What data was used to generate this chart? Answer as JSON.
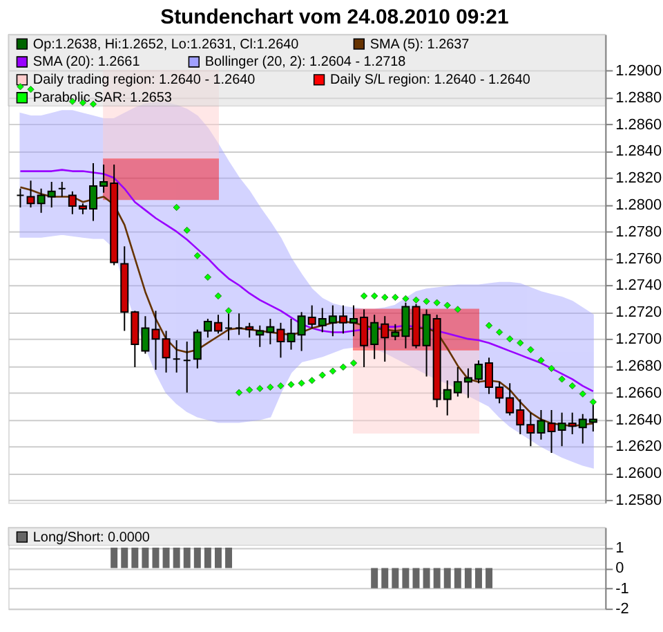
{
  "chart_data": [
    {
      "type": "candlestick",
      "title": "Stundenchart vom 24.08.2010 09:21",
      "categories": [
        null,
        null,
        null,
        null,
        null,
        null,
        null,
        null,
        null,
        null,
        null,
        null,
        null,
        null,
        null,
        null,
        null,
        null,
        null,
        null,
        null,
        null,
        null,
        null,
        null,
        null,
        null,
        null,
        null,
        null,
        null,
        null,
        null,
        null,
        null,
        null,
        null,
        null,
        null,
        null,
        null,
        null,
        null,
        null,
        null,
        null,
        null,
        null,
        null,
        null,
        null,
        null,
        null,
        null,
        null,
        null
      ],
      "ylim": [
        1.2578,
        1.2927
      ],
      "yticks": [
        {
          "value": 1.258,
          "label": "1.2580"
        },
        {
          "value": 1.26,
          "label": "1.2600"
        },
        {
          "value": 1.262,
          "label": "1.2620"
        },
        {
          "value": 1.264,
          "label": "1.2640"
        },
        {
          "value": 1.266,
          "label": "1.2660"
        },
        {
          "value": 1.268,
          "label": "1.2680"
        },
        {
          "value": 1.27,
          "label": "1.2700"
        },
        {
          "value": 1.272,
          "label": "1.2720"
        },
        {
          "value": 1.274,
          "label": "1.2740"
        },
        {
          "value": 1.276,
          "label": "1.2760"
        },
        {
          "value": 1.278,
          "label": "1.2780"
        },
        {
          "value": 1.28,
          "label": "1.2800"
        },
        {
          "value": 1.282,
          "label": "1.2820"
        },
        {
          "value": 1.284,
          "label": "1.2840"
        },
        {
          "value": 1.286,
          "label": "1.2860"
        },
        {
          "value": 1.288,
          "label": "1.2880"
        },
        {
          "value": 1.29,
          "label": "1.2900"
        }
      ],
      "grid": "y",
      "legend": "top",
      "tick_labels": "y",
      "series": [
        {
          "type": "line",
          "name": "Bollinger (20, 2): 1.2604 - 1.2718",
          "color": "#a0a0ff",
          "values": [
            null,
            null,
            null,
            null,
            null,
            null,
            null,
            null,
            null,
            null,
            null,
            null,
            null,
            null,
            null,
            null,
            null,
            null,
            null,
            null,
            null,
            null,
            null,
            null,
            null,
            null,
            null,
            null,
            null,
            null,
            null,
            null,
            null,
            null,
            null,
            null,
            null,
            null,
            null,
            null,
            null,
            null,
            null,
            null,
            null,
            null,
            null,
            null,
            null,
            null,
            null,
            null,
            null,
            null,
            null,
            null
          ],
          "upper": [
            1.2868,
            1.2866,
            1.2866,
            1.2868,
            1.287,
            1.287,
            1.2868,
            1.2866,
            1.2864,
            1.2864,
            1.2868,
            1.2872,
            1.2875,
            1.2876,
            1.2876,
            1.2874,
            1.2871,
            1.2866,
            1.2857,
            1.2845,
            1.2832,
            1.282,
            1.281,
            1.2798,
            1.2787,
            1.2775,
            1.276,
            1.2748,
            1.2737,
            1.273,
            1.2726,
            1.2724,
            1.2723,
            1.2722,
            1.2722,
            1.2723,
            1.2725,
            1.273,
            1.2735,
            1.2737,
            1.2738,
            1.2739,
            1.274,
            1.274,
            1.274,
            1.2741,
            1.2742,
            1.2742,
            1.2741,
            1.2738,
            1.2735,
            1.2733,
            1.2731,
            1.2728,
            1.2723,
            1.2718
          ],
          "lower": [
            1.2776,
            1.2776,
            1.2776,
            1.2777,
            1.2778,
            1.2777,
            1.2776,
            1.2775,
            1.2775,
            1.2768,
            1.274,
            1.2715,
            1.2695,
            1.2675,
            1.266,
            1.2652,
            1.2646,
            1.2642,
            1.264,
            1.2638,
            1.2638,
            1.2638,
            1.2639,
            1.264,
            1.2642,
            1.266,
            1.2675,
            1.2683,
            1.2685,
            1.2687,
            1.269,
            1.2693,
            1.2694,
            1.2694,
            1.2693,
            1.269,
            1.2686,
            1.2682,
            1.2678,
            1.2674,
            1.267,
            1.2667,
            1.2663,
            1.2658,
            1.2654,
            1.265,
            1.2642,
            1.2635,
            1.263,
            1.2625,
            1.262,
            1.2616,
            1.2612,
            1.2609,
            1.2606,
            1.2604
          ]
        },
        {
          "type": "area",
          "name": "Daily trading region: 1.2640 - 1.2640",
          "color": "#ffcccc",
          "values": [
            null,
            null,
            null,
            null,
            null,
            null,
            null,
            null,
            null,
            null,
            null,
            null,
            null,
            null,
            null,
            null,
            null,
            null,
            null,
            null,
            null,
            null,
            null,
            null,
            null,
            null,
            null,
            null,
            null,
            null,
            null,
            null,
            null,
            null,
            null,
            null,
            null,
            null,
            null,
            null,
            null,
            null,
            null,
            null,
            null,
            null,
            null,
            null,
            null,
            null,
            null,
            null,
            null,
            null,
            null,
            null
          ],
          "upper": [
            null,
            null,
            null,
            null,
            null,
            null,
            null,
            null,
            1.29,
            1.29,
            1.29,
            1.29,
            1.29,
            1.29,
            1.29,
            1.29,
            1.29,
            1.29,
            1.29,
            1.29,
            null,
            null,
            null,
            null,
            null,
            null,
            null,
            null,
            null,
            null,
            null,
            null,
            1.2692,
            1.2692,
            1.2692,
            1.2692,
            1.2692,
            1.2692,
            1.2692,
            1.2692,
            1.2692,
            1.2692,
            1.2692,
            1.2692,
            1.2692,
            null,
            null,
            null,
            null,
            null,
            null,
            null,
            null,
            null,
            null,
            null
          ],
          "lower": [
            null,
            null,
            null,
            null,
            null,
            null,
            null,
            null,
            1.2834,
            1.2834,
            1.2834,
            1.2834,
            1.2834,
            1.2834,
            1.2834,
            1.2834,
            1.2834,
            1.2834,
            1.2834,
            1.2834,
            null,
            null,
            null,
            null,
            null,
            null,
            null,
            null,
            null,
            null,
            null,
            null,
            1.263,
            1.263,
            1.263,
            1.263,
            1.263,
            1.263,
            1.263,
            1.263,
            1.263,
            1.263,
            1.263,
            1.263,
            1.263,
            null,
            null,
            null,
            null,
            null,
            null,
            null,
            null,
            null,
            null,
            null
          ]
        },
        {
          "type": "area",
          "name": "Daily S/L region: 1.2640 - 1.2640",
          "color": "#ff0000",
          "values": [
            null,
            null,
            null,
            null,
            null,
            null,
            null,
            null,
            null,
            null,
            null,
            null,
            null,
            null,
            null,
            null,
            null,
            null,
            null,
            null,
            null,
            null,
            null,
            null,
            null,
            null,
            null,
            null,
            null,
            null,
            null,
            null,
            null,
            null,
            null,
            null,
            null,
            null,
            null,
            null,
            null,
            null,
            null,
            null,
            null,
            null,
            null,
            null,
            null,
            null,
            null,
            null,
            null,
            null,
            null,
            null
          ],
          "upper": [
            null,
            null,
            null,
            null,
            null,
            null,
            null,
            null,
            1.2834,
            1.2834,
            1.2834,
            1.2834,
            1.2834,
            1.2834,
            1.2834,
            1.2834,
            1.2834,
            1.2834,
            1.2834,
            1.2834,
            null,
            null,
            null,
            null,
            null,
            null,
            null,
            null,
            null,
            null,
            null,
            null,
            1.2722,
            1.2722,
            1.2722,
            1.2722,
            1.2722,
            1.2722,
            1.2722,
            1.2722,
            1.2722,
            1.2722,
            1.2722,
            1.2722,
            1.2722,
            null,
            null,
            null,
            null,
            null,
            null,
            null,
            null,
            null,
            null,
            null
          ],
          "lower": [
            null,
            null,
            null,
            null,
            null,
            null,
            null,
            null,
            1.2804,
            1.2804,
            1.2804,
            1.2804,
            1.2804,
            1.2804,
            1.2804,
            1.2804,
            1.2804,
            1.2804,
            1.2804,
            1.2804,
            null,
            null,
            null,
            null,
            null,
            null,
            null,
            null,
            null,
            null,
            null,
            null,
            1.2692,
            1.2692,
            1.2692,
            1.2692,
            1.2692,
            1.2692,
            1.2692,
            1.2692,
            1.2692,
            1.2692,
            1.2692,
            1.2692,
            1.2692,
            null,
            null,
            null,
            null,
            null,
            null,
            null,
            null,
            null,
            null,
            null
          ]
        },
        {
          "type": "line",
          "name": "SMA (20): 1.2661",
          "color": "#9900ff",
          "values": [
            1.2825,
            1.2825,
            1.2825,
            1.2825,
            1.2826,
            1.2825,
            1.2825,
            1.2824,
            1.2823,
            1.282,
            1.2812,
            1.2802,
            1.2796,
            1.279,
            1.2785,
            1.278,
            1.2774,
            1.2767,
            1.276,
            1.2752,
            1.2745,
            1.274,
            1.2734,
            1.2729,
            1.2725,
            1.2721,
            1.2716,
            1.2711,
            1.2708,
            1.2706,
            1.2705,
            1.2705,
            1.2706,
            1.2707,
            1.2708,
            1.2709,
            1.2709,
            1.271,
            1.2709,
            1.2708,
            1.2706,
            1.2704,
            1.2702,
            1.27,
            1.2699,
            1.2697,
            1.2694,
            1.2691,
            1.2688,
            1.2685,
            1.2682,
            1.2678,
            1.2674,
            1.267,
            1.2665,
            1.2661
          ]
        },
        {
          "type": "line",
          "name": "SMA (5): 1.2637",
          "color": "#663300",
          "values": [
            1.2813,
            1.2811,
            1.2808,
            1.2806,
            1.2806,
            1.2806,
            1.2802,
            1.2804,
            1.2806,
            1.28,
            1.2785,
            1.276,
            1.2735,
            1.2715,
            1.27,
            1.2692,
            1.269,
            1.2692,
            1.2697,
            1.2702,
            1.2707,
            1.2708,
            1.2707,
            1.2706,
            1.2705,
            1.2704,
            1.2703,
            1.2705,
            1.2708,
            1.271,
            1.2712,
            1.2713,
            1.2712,
            1.271,
            1.2708,
            1.2707,
            1.2706,
            1.2707,
            1.2708,
            1.2708,
            1.2705,
            1.2693,
            1.268,
            1.267,
            1.2668,
            1.2669,
            1.2668,
            1.2662,
            1.2653,
            1.2645,
            1.264,
            1.2637,
            1.2636,
            1.2635,
            1.2636,
            1.2637
          ]
        },
        {
          "type": "candlestick",
          "name": "Op:1.2638, Hi:1.2652, Lo:1.2631, Cl:1.2640",
          "color": "#006400",
          "ohlc": [
            [
              1.2807,
              1.2812,
              1.2798,
              1.2807
            ],
            [
              1.2806,
              1.2818,
              1.2798,
              1.2801
            ],
            [
              1.2801,
              1.2812,
              1.2794,
              1.2807
            ],
            [
              1.2806,
              1.2817,
              1.2798,
              1.281
            ],
            [
              1.2812,
              1.2817,
              1.2806,
              1.2812
            ],
            [
              1.2807,
              1.281,
              1.2793,
              1.2799
            ],
            [
              1.2799,
              1.2801,
              1.2793,
              1.2797
            ],
            [
              1.2797,
              1.2831,
              1.2788,
              1.2814
            ],
            [
              1.2814,
              1.283,
              1.2809,
              1.2817
            ],
            [
              1.2816,
              1.283,
              1.2755,
              1.2757
            ],
            [
              1.2756,
              1.2769,
              1.2706,
              1.272
            ],
            [
              1.272,
              1.2721,
              1.2679,
              1.2696
            ],
            [
              1.2691,
              1.2717,
              1.2689,
              1.2708
            ],
            [
              1.2707,
              1.2721,
              1.2677,
              1.27
            ],
            [
              1.27,
              1.2706,
              1.2675,
              1.2686
            ],
            [
              1.2685,
              1.2699,
              1.2675,
              1.2685
            ],
            [
              1.2684,
              1.2698,
              1.266,
              1.2684
            ],
            [
              1.2685,
              1.2707,
              1.2678,
              1.2705
            ],
            [
              1.2706,
              1.2715,
              1.2701,
              1.2713
            ],
            [
              1.2712,
              1.2718,
              1.2704,
              1.2706
            ],
            [
              1.2708,
              1.2721,
              1.2699,
              1.2708
            ],
            [
              1.2708,
              1.2719,
              1.2703,
              1.2708
            ],
            [
              1.2709,
              1.2712,
              1.2701,
              1.2707
            ],
            [
              1.2703,
              1.271,
              1.2694,
              1.2706
            ],
            [
              1.2705,
              1.2715,
              1.2696,
              1.2709
            ],
            [
              1.2707,
              1.2712,
              1.2686,
              1.2698
            ],
            [
              1.2698,
              1.2715,
              1.2692,
              1.2704
            ],
            [
              1.2703,
              1.272,
              1.2691,
              1.2717
            ],
            [
              1.2716,
              1.2725,
              1.2708,
              1.2711
            ],
            [
              1.271,
              1.2723,
              1.2705,
              1.2715
            ],
            [
              1.2712,
              1.2725,
              1.2702,
              1.2717
            ],
            [
              1.2717,
              1.2725,
              1.2704,
              1.2712
            ],
            [
              1.2712,
              1.2725,
              1.2702,
              1.2715
            ],
            [
              1.2716,
              1.2722,
              1.2679,
              1.2695
            ],
            [
              1.2696,
              1.2718,
              1.2685,
              1.2712
            ],
            [
              1.2711,
              1.2717,
              1.2683,
              1.2701
            ],
            [
              1.2702,
              1.2711,
              1.2699,
              1.2705
            ],
            [
              1.2702,
              1.2727,
              1.2693,
              1.2724
            ],
            [
              1.2724,
              1.2726,
              1.2693,
              1.2695
            ],
            [
              1.2695,
              1.2722,
              1.2672,
              1.2718
            ],
            [
              1.2715,
              1.2718,
              1.2649,
              1.2655
            ],
            [
              1.2655,
              1.2669,
              1.2643,
              1.2662
            ],
            [
              1.266,
              1.2679,
              1.2657,
              1.2668
            ],
            [
              1.2668,
              1.2678,
              1.2656,
              1.2671
            ],
            [
              1.267,
              1.2684,
              1.2667,
              1.2681
            ],
            [
              1.2682,
              1.2686,
              1.2659,
              1.2664
            ],
            [
              1.2664,
              1.2668,
              1.2652,
              1.2656
            ],
            [
              1.2656,
              1.2667,
              1.2643,
              1.2645
            ],
            [
              1.2647,
              1.2655,
              1.2629,
              1.2636
            ],
            [
              1.2636,
              1.2645,
              1.262,
              1.263
            ],
            [
              1.263,
              1.2647,
              1.2625,
              1.2639
            ],
            [
              1.2637,
              1.2647,
              1.2615,
              1.2631
            ],
            [
              1.2632,
              1.2645,
              1.262,
              1.2637
            ],
            [
              1.2637,
              1.2645,
              1.2629,
              1.2635
            ],
            [
              1.2634,
              1.2644,
              1.2622,
              1.264
            ],
            [
              1.2638,
              1.2652,
              1.2631,
              1.264
            ]
          ],
          "colors": [
            "#000000",
            "#cc0000",
            "#008000",
            "#008000",
            "#000000",
            "#cc0000",
            "#cc0000",
            "#008000",
            "#008000",
            "#cc0000",
            "#cc0000",
            "#cc0000",
            "#008000",
            "#cc0000",
            "#cc0000",
            "#000000",
            "#000000",
            "#008000",
            "#008000",
            "#cc0000",
            "#000000",
            "#000000",
            "#cc0000",
            "#008000",
            "#008000",
            "#cc0000",
            "#008000",
            "#008000",
            "#cc0000",
            "#008000",
            "#008000",
            "#cc0000",
            "#008000",
            "#cc0000",
            "#008000",
            "#cc0000",
            "#008000",
            "#008000",
            "#cc0000",
            "#008000",
            "#cc0000",
            "#008000",
            "#008000",
            "#008000",
            "#008000",
            "#cc0000",
            "#cc0000",
            "#cc0000",
            "#cc0000",
            "#cc0000",
            "#008000",
            "#cc0000",
            "#008000",
            "#cc0000",
            "#008000",
            "#008000"
          ]
        },
        {
          "type": "scatter",
          "name": "Parabolic SAR: 1.2653",
          "color": "#00ff00",
          "marker": "diamond",
          "values": [
            1.2888,
            1.2886,
            null,
            null,
            null,
            1.2877,
            1.2876,
            1.2875,
            null,
            null,
            null,
            null,
            null,
            null,
            null,
            1.2798,
            1.2781,
            1.2762,
            1.2746,
            1.2732,
            1.2721,
            1.266,
            1.2662,
            1.2663,
            1.2664,
            1.2665,
            1.2666,
            1.2667,
            1.2669,
            1.2673,
            1.2676,
            1.2679,
            1.2682,
            1.2732,
            1.2732,
            1.2731,
            1.2731,
            1.273,
            1.2729,
            1.2728,
            1.2727,
            1.2725,
            1.2722,
            null,
            null,
            1.271,
            1.2705,
            1.27,
            1.2697,
            1.2692,
            1.2684,
            1.2678,
            1.267,
            1.2665,
            1.2659,
            1.2653
          ]
        }
      ]
    },
    {
      "type": "bar",
      "categories": [
        null,
        null,
        null,
        null,
        null,
        null,
        null,
        null,
        null,
        null,
        null,
        null,
        null,
        null,
        null,
        null,
        null,
        null,
        null,
        null,
        null,
        null,
        null,
        null,
        null,
        null,
        null,
        null,
        null,
        null,
        null,
        null,
        null,
        null,
        null,
        null,
        null,
        null,
        null,
        null,
        null,
        null,
        null,
        null,
        null,
        null,
        null,
        null,
        null,
        null,
        null,
        null,
        null,
        null,
        null,
        null
      ],
      "ylim": [
        -2,
        2
      ],
      "yticks": [
        -2,
        -1,
        0,
        1
      ],
      "grid": "y",
      "legend": "top",
      "tick_labels": "y",
      "series": [
        {
          "name": "Long/Short: 0.0000",
          "color": "#666666",
          "values": [
            0,
            0,
            0,
            0,
            0,
            0,
            0,
            0,
            0,
            1,
            1,
            1,
            1,
            1,
            1,
            1,
            1,
            1,
            1,
            1,
            1,
            0,
            0,
            0,
            0,
            0,
            0,
            0,
            0,
            0,
            0,
            0,
            0,
            0,
            -1,
            -1,
            -1,
            -1,
            -1,
            -1,
            -1,
            -1,
            -1,
            -1,
            -1,
            -1,
            0,
            0,
            0,
            0,
            0,
            0,
            0,
            0,
            0,
            0
          ]
        }
      ]
    }
  ]
}
